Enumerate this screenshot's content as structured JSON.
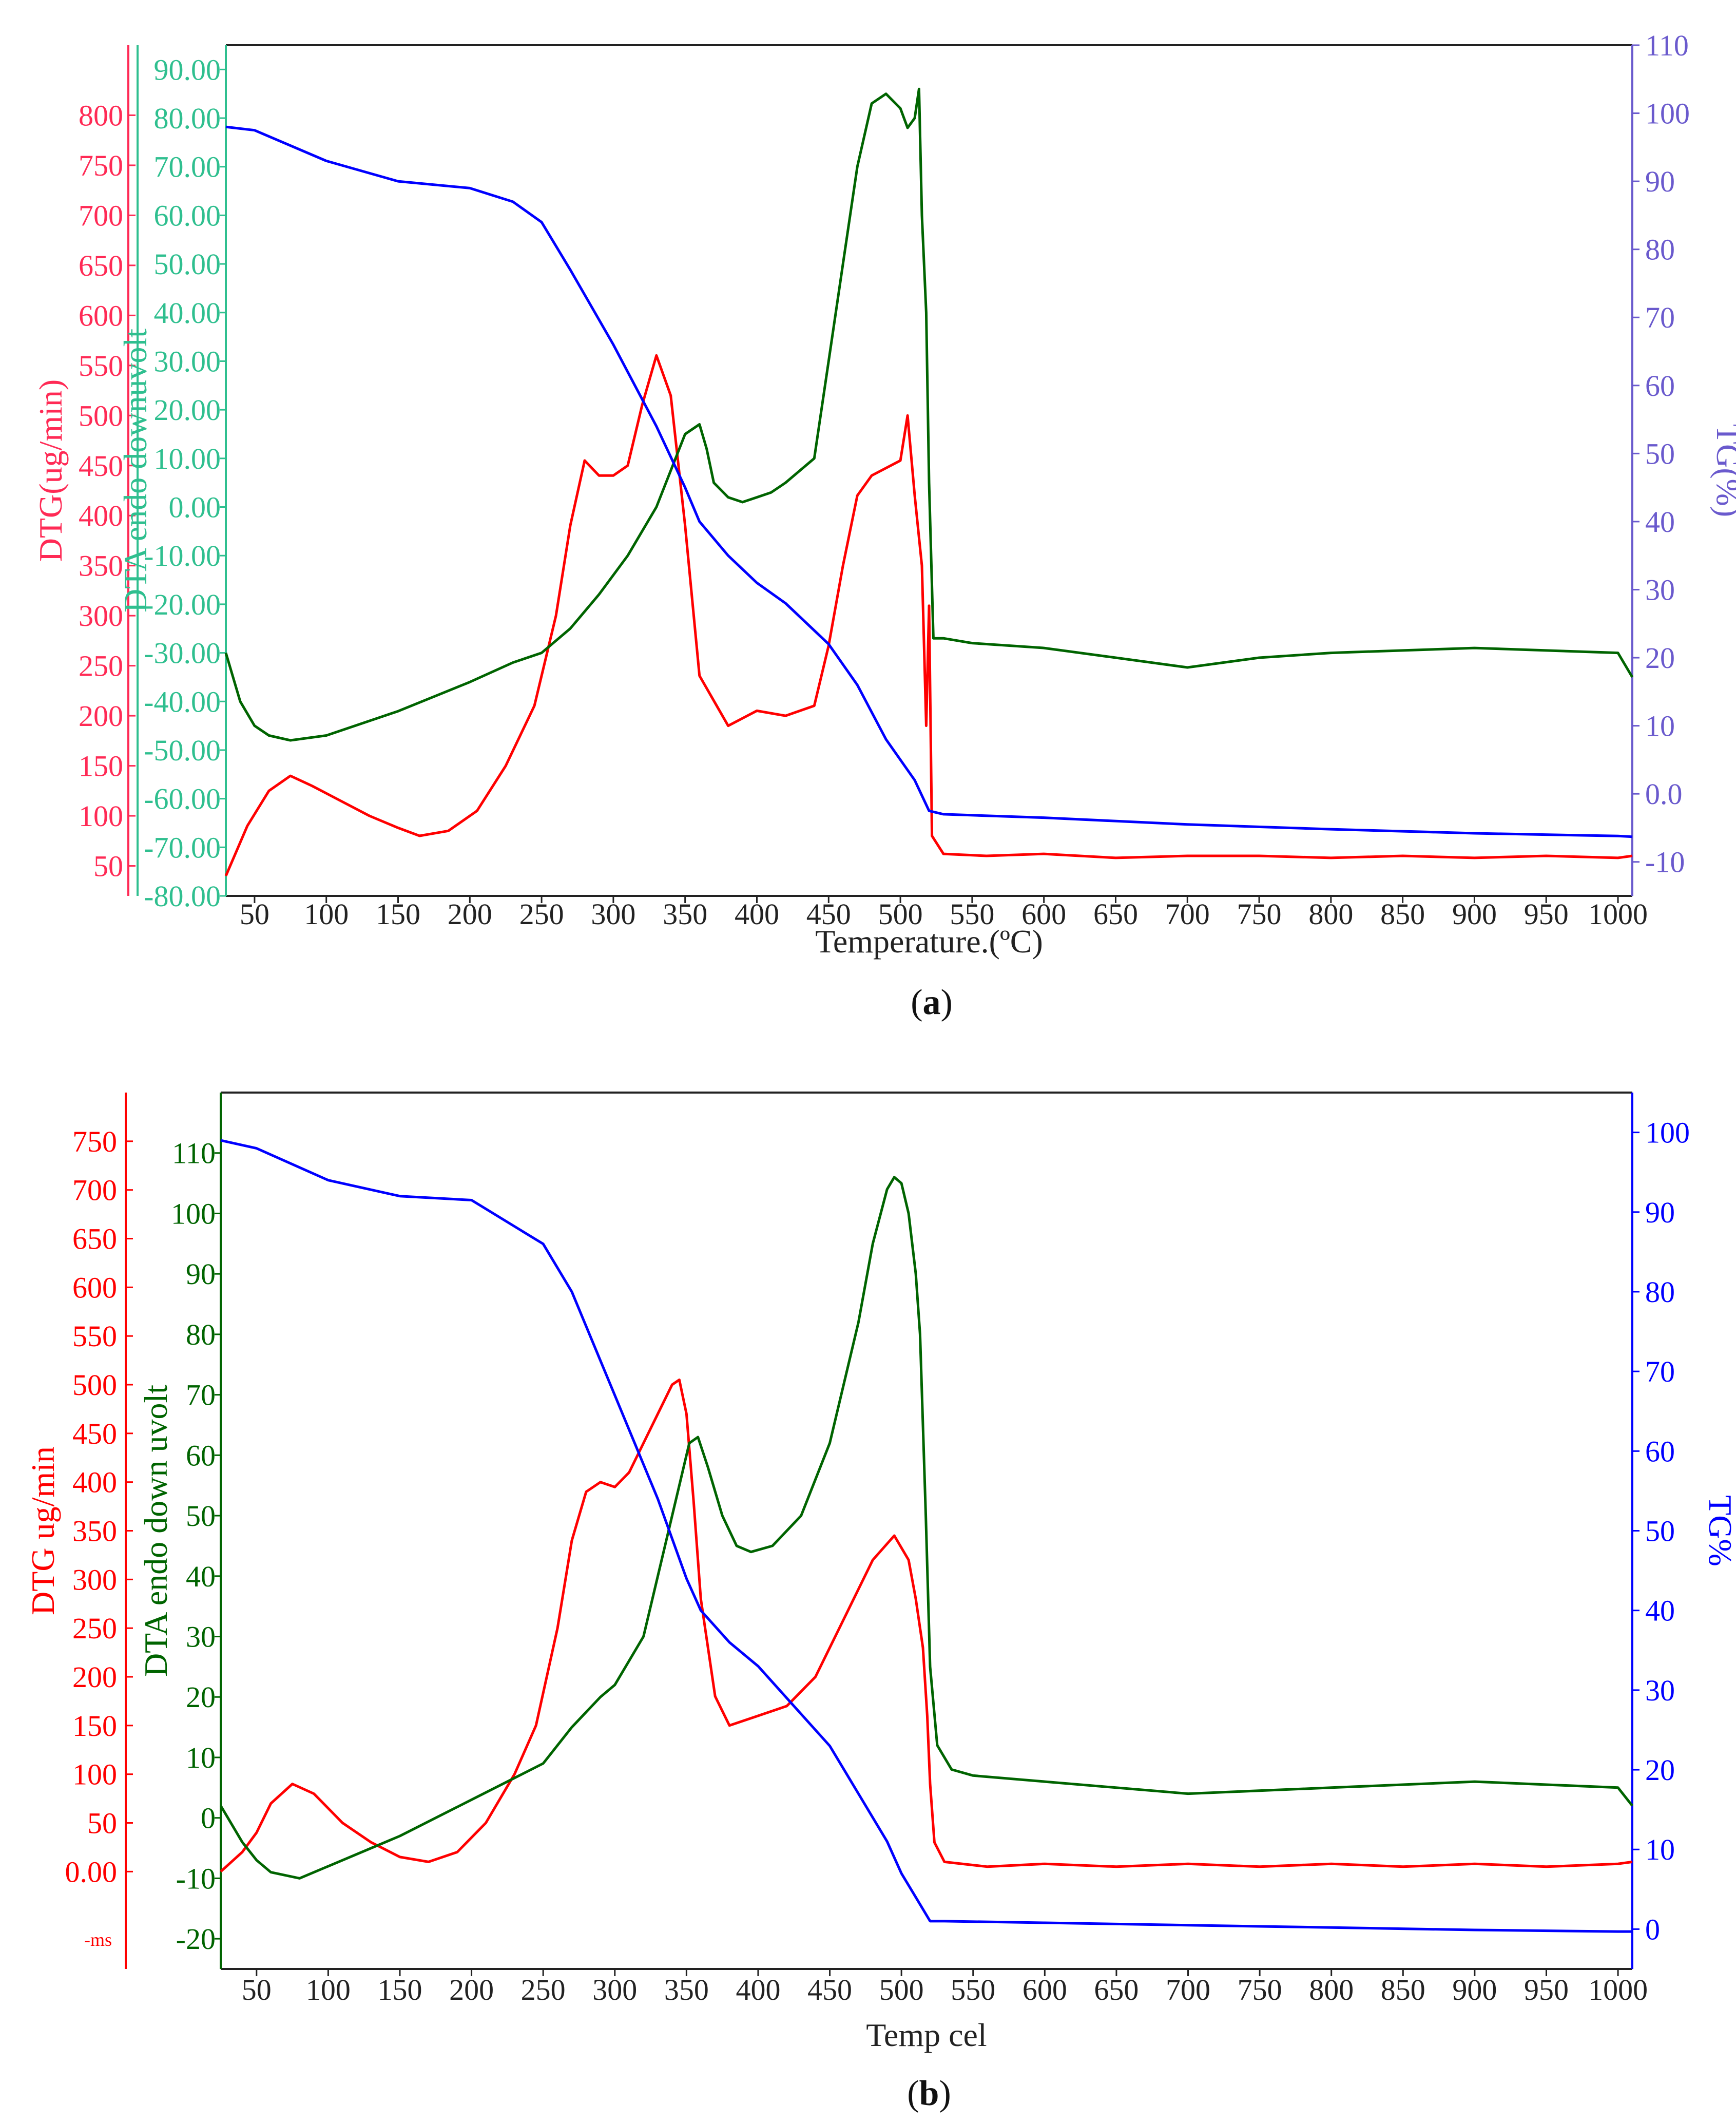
{
  "colors": {
    "dtg": "#ff0000",
    "dta": "#006400",
    "tg": "#0000ff",
    "dtg_axis_a": "#ff2a55",
    "dta_axis_a": "#2fbf8f",
    "tg_axis_a": "#6a5acd"
  },
  "chart_data": [
    {
      "type": "line",
      "caption_letter": "a",
      "xlabel": "Temperature.(ºC)",
      "xlim": [
        30,
        1010
      ],
      "x_ticks": [
        "50",
        "100",
        "150",
        "200",
        "250",
        "300",
        "350",
        "400",
        "450",
        "500",
        "550",
        "600",
        "650",
        "700",
        "750",
        "800",
        "850",
        "900",
        "950",
        "1000"
      ],
      "axes": {
        "dtg": {
          "label": "DTG(ug/min)",
          "ylim": [
            20,
            870
          ],
          "ticks": [
            "50",
            "100",
            "150",
            "200",
            "250",
            "300",
            "350",
            "400",
            "450",
            "500",
            "550",
            "600",
            "650",
            "700",
            "750",
            "800"
          ]
        },
        "dta": {
          "label": "DTA endo downuvolt",
          "ylim": [
            -80,
            95
          ],
          "ticks": [
            "-80.00",
            "-70.00",
            "-60.00",
            "-50.00",
            "-40.00",
            "-30.00",
            "-20.00",
            "-10.00",
            "0.00",
            "10.00",
            "20.00",
            "30.00",
            "40.00",
            "50.00",
            "60.00",
            "70.00",
            "80.00",
            "90.00"
          ]
        },
        "tg": {
          "label": "TG(%)",
          "ylim": [
            -15,
            110
          ],
          "ticks": [
            "-10",
            "0.0",
            "10",
            "20",
            "30",
            "40",
            "50",
            "60",
            "70",
            "80",
            "90",
            "100",
            "110"
          ]
        }
      },
      "series": [
        {
          "key": "dtg",
          "x": [
            30,
            45,
            60,
            75,
            90,
            110,
            130,
            150,
            165,
            185,
            205,
            225,
            245,
            260,
            270,
            280,
            290,
            300,
            310,
            320,
            330,
            340,
            350,
            360,
            380,
            400,
            420,
            440,
            450,
            460,
            470,
            480,
            500,
            505,
            510,
            515,
            518,
            520,
            522,
            530,
            560,
            600,
            650,
            700,
            750,
            800,
            850,
            900,
            950,
            1000,
            1010
          ],
          "y": [
            40,
            90,
            125,
            140,
            130,
            115,
            100,
            88,
            80,
            85,
            105,
            150,
            210,
            300,
            390,
            455,
            440,
            440,
            450,
            510,
            560,
            520,
            390,
            240,
            190,
            205,
            200,
            210,
            270,
            350,
            420,
            440,
            455,
            500,
            420,
            350,
            190,
            310,
            80,
            62,
            60,
            62,
            58,
            60,
            60,
            58,
            60,
            58,
            60,
            58,
            60
          ]
        },
        {
          "key": "dta",
          "x": [
            30,
            40,
            50,
            60,
            75,
            100,
            150,
            200,
            230,
            250,
            270,
            290,
            310,
            330,
            350,
            360,
            365,
            370,
            380,
            390,
            400,
            410,
            420,
            440,
            450,
            460,
            470,
            480,
            490,
            500,
            505,
            510,
            513,
            515,
            518,
            520,
            523,
            530,
            550,
            600,
            650,
            700,
            750,
            800,
            900,
            1000,
            1010
          ],
          "y": [
            -30,
            -40,
            -45,
            -47,
            -48,
            -47,
            -42,
            -36,
            -32,
            -30,
            -25,
            -18,
            -10,
            0,
            15,
            17,
            12,
            5,
            2,
            1,
            2,
            3,
            5,
            10,
            30,
            50,
            70,
            83,
            85,
            82,
            78,
            80,
            86,
            60,
            40,
            5,
            -27,
            -27,
            -28,
            -29,
            -31,
            -33,
            -31,
            -30,
            -29,
            -30,
            -35
          ]
        },
        {
          "key": "tg",
          "x": [
            30,
            50,
            100,
            150,
            200,
            230,
            250,
            270,
            300,
            330,
            350,
            360,
            380,
            400,
            420,
            450,
            470,
            490,
            510,
            520,
            530,
            600,
            700,
            800,
            900,
            1000,
            1010
          ],
          "y": [
            98,
            97.5,
            93,
            90,
            89,
            87,
            84,
            77,
            66,
            54,
            45,
            40,
            35,
            31,
            28,
            22,
            16,
            8,
            2,
            -2.5,
            -3,
            -3.5,
            -4.5,
            -5.2,
            -5.8,
            -6.2,
            -6.3
          ]
        }
      ]
    },
    {
      "type": "line",
      "caption_letter": "b",
      "xlabel": "Temp cel",
      "xlim": [
        25,
        1010
      ],
      "x_ticks": [
        "50",
        "100",
        "150",
        "200",
        "250",
        "300",
        "350",
        "400",
        "450",
        "500",
        "550",
        "600",
        "650",
        "700",
        "750",
        "800",
        "850",
        "900",
        "950",
        "1000"
      ],
      "axes": {
        "dtg": {
          "label": "DTG ug/min",
          "ylim": [
            -100,
            800
          ],
          "ticks": [
            "0.00",
            "50",
            "100",
            "150",
            "200",
            "250",
            "300",
            "350",
            "400",
            "450",
            "500",
            "550",
            "600",
            "650",
            "700",
            "750"
          ],
          "extra_tick": "-ms"
        },
        "dta": {
          "label": "DTA endo down uvolt",
          "ylim": [
            -25,
            120
          ],
          "ticks": [
            "-20",
            "-10",
            "0",
            "10",
            "20",
            "30",
            "40",
            "50",
            "60",
            "70",
            "80",
            "90",
            "100",
            "110"
          ]
        },
        "tg": {
          "label": "TG%",
          "ylim": [
            -5,
            105
          ],
          "ticks": [
            "0",
            "10",
            "20",
            "30",
            "40",
            "50",
            "60",
            "70",
            "80",
            "90",
            "100"
          ]
        }
      },
      "series": [
        {
          "key": "dtg",
          "x": [
            25,
            40,
            50,
            60,
            75,
            90,
            110,
            130,
            150,
            170,
            190,
            210,
            230,
            245,
            260,
            270,
            280,
            290,
            300,
            310,
            320,
            330,
            340,
            345,
            350,
            355,
            360,
            370,
            380,
            400,
            420,
            440,
            460,
            480,
            495,
            505,
            510,
            515,
            518,
            520,
            523,
            530,
            560,
            600,
            650,
            700,
            750,
            800,
            850,
            900,
            950,
            1000,
            1010
          ],
          "y": [
            0,
            20,
            40,
            70,
            90,
            80,
            50,
            30,
            15,
            10,
            20,
            50,
            100,
            150,
            250,
            340,
            390,
            400,
            395,
            410,
            440,
            470,
            500,
            505,
            470,
            380,
            280,
            180,
            150,
            160,
            170,
            200,
            260,
            320,
            345,
            320,
            280,
            230,
            160,
            90,
            30,
            10,
            5,
            8,
            5,
            8,
            5,
            8,
            5,
            8,
            5,
            8,
            10
          ]
        },
        {
          "key": "dta",
          "x": [
            25,
            30,
            40,
            50,
            60,
            80,
            100,
            150,
            200,
            250,
            270,
            290,
            300,
            320,
            335,
            345,
            352,
            358,
            365,
            375,
            385,
            395,
            410,
            430,
            450,
            470,
            480,
            490,
            495,
            500,
            505,
            510,
            513,
            517,
            520,
            525,
            535,
            550,
            600,
            700,
            800,
            900,
            1000,
            1010
          ],
          "y": [
            2,
            0,
            -4,
            -7,
            -9,
            -10,
            -8,
            -3,
            3,
            9,
            15,
            20,
            22,
            30,
            45,
            55,
            62,
            63,
            58,
            50,
            45,
            44,
            45,
            50,
            62,
            82,
            95,
            104,
            106,
            105,
            100,
            90,
            80,
            50,
            25,
            12,
            8,
            7,
            6,
            4,
            5,
            6,
            5,
            2
          ]
        },
        {
          "key": "tg",
          "x": [
            25,
            50,
            100,
            150,
            200,
            250,
            270,
            300,
            330,
            350,
            360,
            380,
            400,
            420,
            450,
            470,
            490,
            500,
            510,
            520,
            530,
            600,
            700,
            800,
            900,
            1000,
            1010
          ],
          "y": [
            99,
            98,
            94,
            92,
            91.5,
            86,
            80,
            67,
            54,
            44,
            40,
            36,
            33,
            29,
            23,
            17,
            11,
            7,
            4,
            1,
            1,
            0.8,
            0.5,
            0.2,
            -0.1,
            -0.3,
            -0.3
          ]
        }
      ]
    }
  ]
}
